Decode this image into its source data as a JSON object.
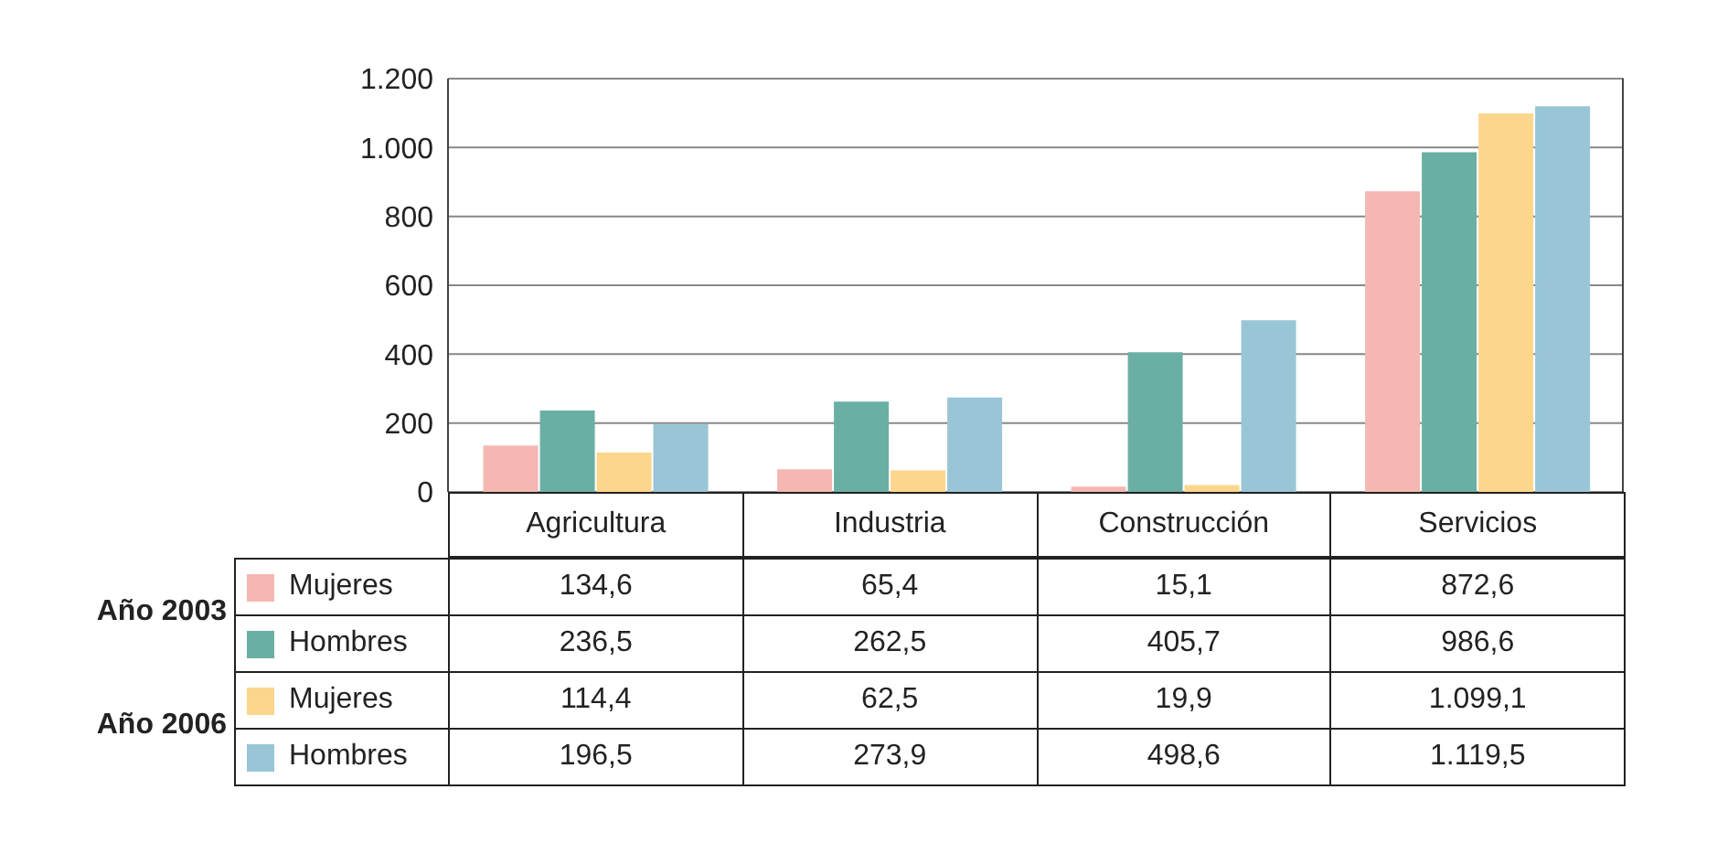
{
  "chart_data": {
    "type": "bar",
    "categories": [
      "Agricultura",
      "Industria",
      "Construcción",
      "Servicios"
    ],
    "series": [
      {
        "name": "Mujeres",
        "color": "#f5b7b1",
        "values": [
          134.6,
          65.4,
          15.1,
          872.6
        ],
        "value_labels": [
          "134,6",
          "65,4",
          "15,1",
          "872,6"
        ]
      },
      {
        "name": "Hombres",
        "color": "#6aafa4",
        "values": [
          236.5,
          262.5,
          405.7,
          986.6
        ],
        "value_labels": [
          "236,5",
          "262,5",
          "405,7",
          "986,6"
        ]
      },
      {
        "name": "Mujeres",
        "color": "#fdd68e",
        "values": [
          114.4,
          62.5,
          19.9,
          1099.1
        ],
        "value_labels": [
          "114,4",
          "62,5",
          "19,9",
          "1.099,1"
        ]
      },
      {
        "name": "Hombres",
        "color": "#98c6d6",
        "values": [
          196.5,
          273.9,
          498.6,
          1119.5
        ],
        "value_labels": [
          "196,5",
          "273,9",
          "498,6",
          "1.119,5"
        ]
      }
    ],
    "annotations": [
      "Año 2003",
      "Año 2006"
    ],
    "ylim": [
      0,
      1200
    ],
    "yticks": [
      0,
      200,
      400,
      600,
      800,
      {
        "value": 1000,
        "label": "1.000"
      },
      {
        "value": 1200,
        "label": "1.200"
      }
    ],
    "grid": "y",
    "legend": "left"
  }
}
